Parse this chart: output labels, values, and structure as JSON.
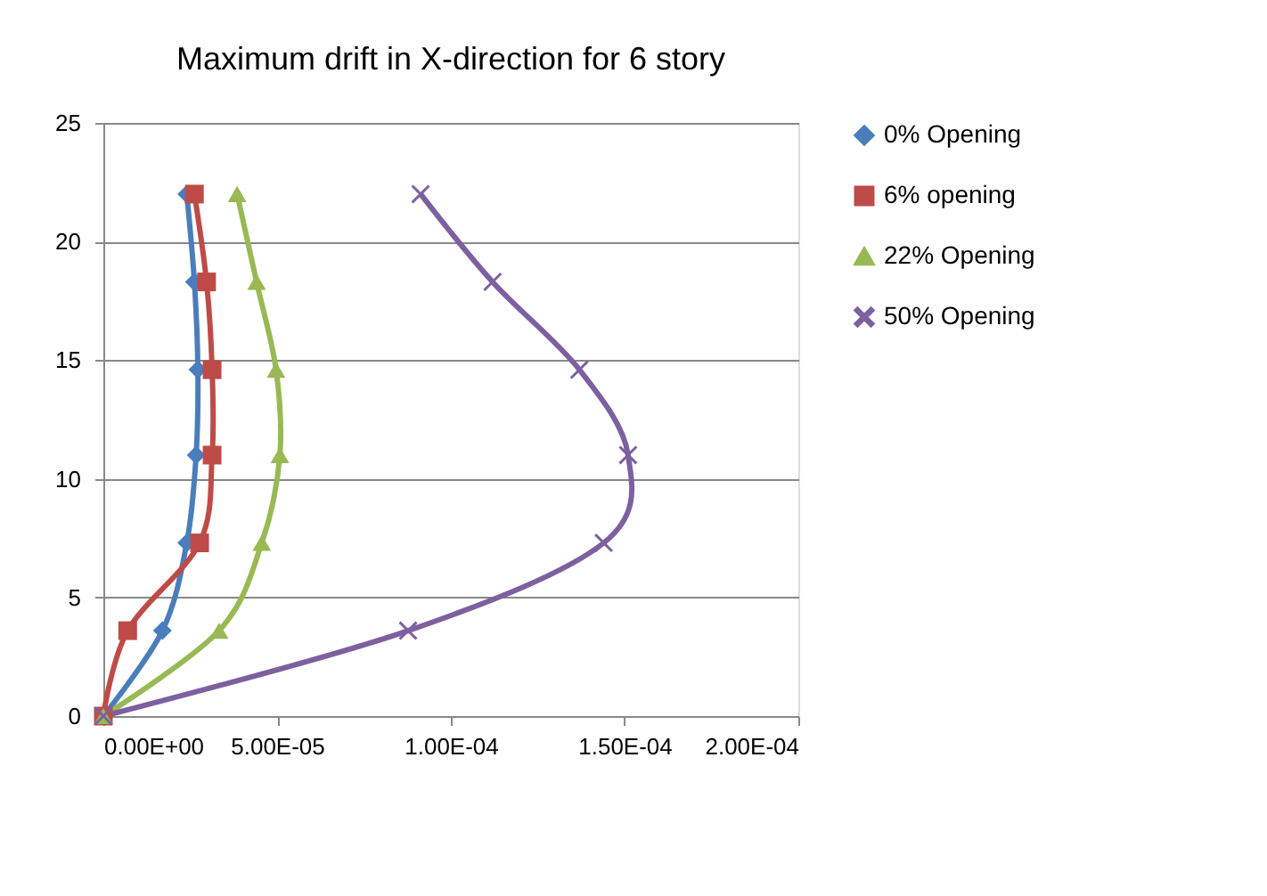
{
  "chart_data": {
    "type": "line",
    "title": "Maximum drift in X-direction for 6 story",
    "series": [
      {
        "name": "0% Opening",
        "color": "#4a7ebb",
        "marker": "diamond",
        "x": [
          0,
          1.7e-05,
          2.4e-05,
          2.67e-05,
          2.72e-05,
          2.62e-05,
          2.4e-05
        ],
        "values": [
          0,
          3.6,
          7.3,
          11,
          14.6,
          18.3,
          22
        ]
      },
      {
        "name": "6% opening",
        "color": "#be4b48",
        "marker": "square",
        "x": [
          0,
          7e-06,
          2.77e-05,
          3.13e-05,
          3.13e-05,
          2.97e-05,
          2.62e-05
        ],
        "values": [
          0,
          3.6,
          7.3,
          11,
          14.6,
          18.3,
          22
        ]
      },
      {
        "name": "22% Opening",
        "color": "#98b954",
        "marker": "triangle",
        "x": [
          0,
          3.33e-05,
          4.56e-05,
          5.08e-05,
          4.97e-05,
          4.41e-05,
          3.85e-05
        ],
        "values": [
          0,
          3.6,
          7.3,
          11,
          14.6,
          18.3,
          22
        ]
      },
      {
        "name": "50% Opening",
        "color": "#7d60a0",
        "marker": "cross",
        "x": [
          0,
          8.77e-05,
          0.000144,
          0.000151,
          0.000137,
          0.000112,
          9.13e-05
        ],
        "values": [
          0,
          3.6,
          7.3,
          11,
          14.6,
          18.3,
          22
        ]
      }
    ],
    "xlim": [
      0,
      0.0002
    ],
    "xticks": [
      {
        "value": 0,
        "label": "0.00E+00"
      },
      {
        "value": 5e-05,
        "label": "5.00E-05"
      },
      {
        "value": 0.0001,
        "label": "1.00E-04"
      },
      {
        "value": 0.00015,
        "label": "1.50E-04"
      },
      {
        "value": 0.0002,
        "label": "2.00E-04"
      }
    ],
    "ylim": [
      0,
      25
    ],
    "yticks": [
      0,
      5,
      10,
      15,
      20,
      25
    ],
    "grid": "y",
    "legend": "right",
    "line_style": "solid"
  }
}
